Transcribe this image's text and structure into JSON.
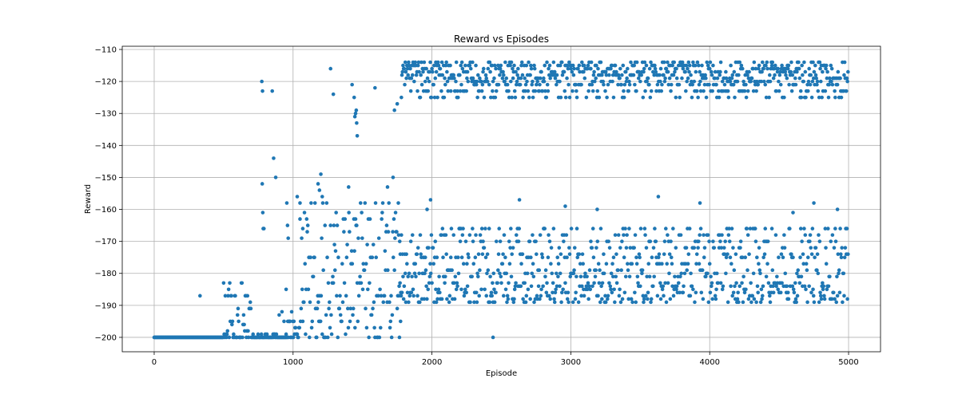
{
  "chart_data": {
    "type": "scatter",
    "title": "Reward vs Episodes",
    "xlabel": "Episode",
    "ylabel": "Reward",
    "xlim": [
      -230,
      5230
    ],
    "ylim": [
      -204.5,
      -109
    ],
    "xticks": [
      0,
      1000,
      2000,
      3000,
      4000,
      5000
    ],
    "yticks": [
      -110,
      -120,
      -130,
      -140,
      -150,
      -160,
      -170,
      -180,
      -190,
      -200
    ],
    "grid": true,
    "marker_color": "#1f77b4",
    "series": [
      {
        "marker": "circle",
        "segments": [
          {
            "start": 0,
            "end": 500,
            "values": [
              -200
            ]
          },
          {
            "start": 500,
            "end": 700,
            "values": [
              -200,
              -200,
              -200,
              -200,
              -199,
              -198,
              -196,
              -195,
              -193,
              -191,
              -189,
              -187,
              -185,
              -183
            ]
          },
          {
            "start": 700,
            "end": 950,
            "values": [
              -200,
              -200,
              -200,
              -200,
              -200,
              -199
            ]
          },
          {
            "start": 950,
            "end": 1050,
            "values": [
              -200,
              -200,
              -199,
              -197,
              -195,
              -192
            ]
          },
          {
            "start": 1050,
            "end": 1780,
            "values": [
              -200,
              -200,
              -200,
              -199,
              -197,
              -195,
              -193,
              -191,
              -189,
              -187,
              -185,
              -183,
              -181,
              -179,
              -177,
              -175,
              -173,
              -171,
              -169,
              -167,
              -165,
              -163,
              -161,
              -158
            ]
          },
          {
            "start": 1780,
            "end": 5000,
            "values": [
              -114,
              -115,
              -116,
              -117,
              -118,
              -119,
              -120,
              -121,
              -123,
              -125
            ]
          },
          {
            "start": 1760,
            "end": 5000,
            "values": [
              -166,
              -168,
              -170,
              -172,
              -174,
              -175,
              -177,
              -179,
              -180,
              -181,
              -183,
              -184,
              -185,
              -186,
              -187,
              -188,
              -189
            ]
          }
        ],
        "points": [
          {
            "x": 330,
            "y": -187
          },
          {
            "x": 775,
            "y": -120
          },
          {
            "x": 780,
            "y": -123
          },
          {
            "x": 778,
            "y": -152
          },
          {
            "x": 782,
            "y": -161
          },
          {
            "x": 785,
            "y": -166
          },
          {
            "x": 790,
            "y": -166
          },
          {
            "x": 850,
            "y": -123
          },
          {
            "x": 860,
            "y": -144
          },
          {
            "x": 875,
            "y": -150
          },
          {
            "x": 900,
            "y": -193
          },
          {
            "x": 920,
            "y": -192
          },
          {
            "x": 935,
            "y": -195
          },
          {
            "x": 950,
            "y": -185
          },
          {
            "x": 960,
            "y": -165
          },
          {
            "x": 955,
            "y": -158
          },
          {
            "x": 965,
            "y": -169
          },
          {
            "x": 1030,
            "y": -156
          },
          {
            "x": 1050,
            "y": -163
          },
          {
            "x": 1070,
            "y": -166
          },
          {
            "x": 1180,
            "y": -152
          },
          {
            "x": 1190,
            "y": -154
          },
          {
            "x": 1200,
            "y": -149
          },
          {
            "x": 1210,
            "y": -156
          },
          {
            "x": 1270,
            "y": -116
          },
          {
            "x": 1290,
            "y": -124
          },
          {
            "x": 1400,
            "y": -153
          },
          {
            "x": 1425,
            "y": -121
          },
          {
            "x": 1440,
            "y": -125
          },
          {
            "x": 1445,
            "y": -131
          },
          {
            "x": 1450,
            "y": -130
          },
          {
            "x": 1455,
            "y": -129
          },
          {
            "x": 1458,
            "y": -133
          },
          {
            "x": 1462,
            "y": -137
          },
          {
            "x": 1590,
            "y": -122
          },
          {
            "x": 1680,
            "y": -153
          },
          {
            "x": 1720,
            "y": -150
          },
          {
            "x": 1730,
            "y": -129
          },
          {
            "x": 1750,
            "y": -127
          },
          {
            "x": 1965,
            "y": -160
          },
          {
            "x": 1990,
            "y": -157
          },
          {
            "x": 2440,
            "y": -200
          },
          {
            "x": 2630,
            "y": -157
          },
          {
            "x": 2960,
            "y": -159
          },
          {
            "x": 3190,
            "y": -160
          },
          {
            "x": 3630,
            "y": -156
          },
          {
            "x": 3930,
            "y": -158
          },
          {
            "x": 4750,
            "y": -158
          },
          {
            "x": 4600,
            "y": -161
          },
          {
            "x": 4920,
            "y": -160
          }
        ]
      }
    ]
  }
}
